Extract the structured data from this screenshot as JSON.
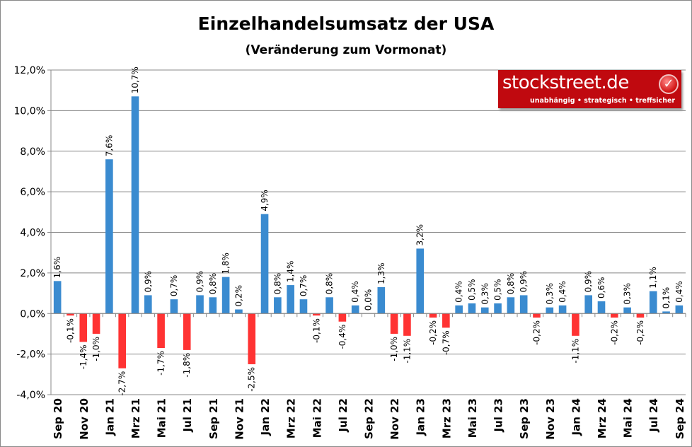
{
  "chart_data": {
    "type": "bar",
    "title": "Einzelhandelsumsatz der USA",
    "subtitle": "(Veränderung zum Vormonat)",
    "xlabel": "",
    "ylabel": "",
    "ylim": [
      -4,
      12
    ],
    "yticks": [
      "-4,0%",
      "-2,0%",
      "0,0%",
      "2,0%",
      "4,0%",
      "6,0%",
      "8,0%",
      "10,0%",
      "12,0%"
    ],
    "grid": true,
    "colors": {
      "positive": "#3a8bd0",
      "negative": "#ff3333"
    },
    "categories": [
      "Sep 20",
      "Okt 20",
      "Nov 20",
      "Dez 20",
      "Jan 21",
      "Feb 21",
      "Mrz 21",
      "Apr 21",
      "Mai 21",
      "Jun 21",
      "Jul 21",
      "Aug 21",
      "Sep 21",
      "Okt 21",
      "Nov 21",
      "Dez 21",
      "Jan 22",
      "Feb 22",
      "Mrz 22",
      "Apr 22",
      "Mai 22",
      "Jun 22",
      "Jul 22",
      "Aug 22",
      "Sep 22",
      "Okt 22",
      "Nov 22",
      "Dez 22",
      "Jan 23",
      "Feb 23",
      "Mrz 23",
      "Apr 23",
      "Mai 23",
      "Jun 23",
      "Jul 23",
      "Aug 23",
      "Sep 23",
      "Okt 23",
      "Nov 23",
      "Dez 23",
      "Jan 24",
      "Feb 24",
      "Mrz 24",
      "Apr 24",
      "Mai 24",
      "Jun 24",
      "Jul 24",
      "Aug 24",
      "Sep 24"
    ],
    "shown_category_labels": [
      "Sep 20",
      "Nov 20",
      "Jan 21",
      "Mrz 21",
      "Mai 21",
      "Jul 21",
      "Sep 21",
      "Nov 21",
      "Jan 22",
      "Mrz 22",
      "Mai 22",
      "Jul 22",
      "Sep 22",
      "Nov 22",
      "Jan 23",
      "Mrz 23",
      "Mai 23",
      "Jul 23",
      "Sep 23",
      "Nov 23",
      "Jan 24",
      "Mrz 24",
      "Mai 24",
      "Jul 24",
      "Sep 24"
    ],
    "values": [
      1.6,
      -0.1,
      -1.4,
      -1.0,
      7.6,
      -2.7,
      10.7,
      0.9,
      -1.7,
      0.7,
      -1.8,
      0.9,
      0.8,
      1.8,
      0.2,
      -2.5,
      4.9,
      0.8,
      1.4,
      0.7,
      -0.1,
      0.8,
      -0.4,
      0.4,
      0.0,
      1.3,
      -1.0,
      -1.1,
      3.2,
      -0.2,
      -0.7,
      0.4,
      0.5,
      0.3,
      0.5,
      0.8,
      0.9,
      -0.2,
      0.3,
      0.4,
      -1.1,
      0.9,
      0.6,
      -0.2,
      0.3,
      -0.2,
      1.1,
      0.1,
      0.4
    ],
    "data_labels": [
      "1,6%",
      "-0,1%",
      "-1,4%",
      "-1,0%",
      "7,6%",
      "-2,7%",
      "10,7%",
      "0,9%",
      "-1,7%",
      "0,7%",
      "-1,8%",
      "0,9%",
      "0,8%",
      "1,8%",
      "0,2%",
      "-2,5%",
      "4,9%",
      "0,8%",
      "1,4%",
      "0,7%",
      "-0,1%",
      "0,8%",
      "-0,4%",
      "0,4%",
      "0,0%",
      "1,3%",
      "-1,0%",
      "-1,1%",
      "3,2%",
      "-0,2%",
      "-0,7%",
      "0,4%",
      "0,5%",
      "0,3%",
      "0,5%",
      "0,8%",
      "0,9%",
      "-0,2%",
      "0,3%",
      "0,4%",
      "-1,1%",
      "0,9%",
      "0,6%",
      "-0,2%",
      "0,3%",
      "-0,2%",
      "1,1%",
      "0,1%",
      "0,4%"
    ]
  },
  "logo": {
    "brand": "stockstreet.de",
    "tagline": "unabhängig • strategisch • treffsicher",
    "icon": "check-circle-icon"
  }
}
